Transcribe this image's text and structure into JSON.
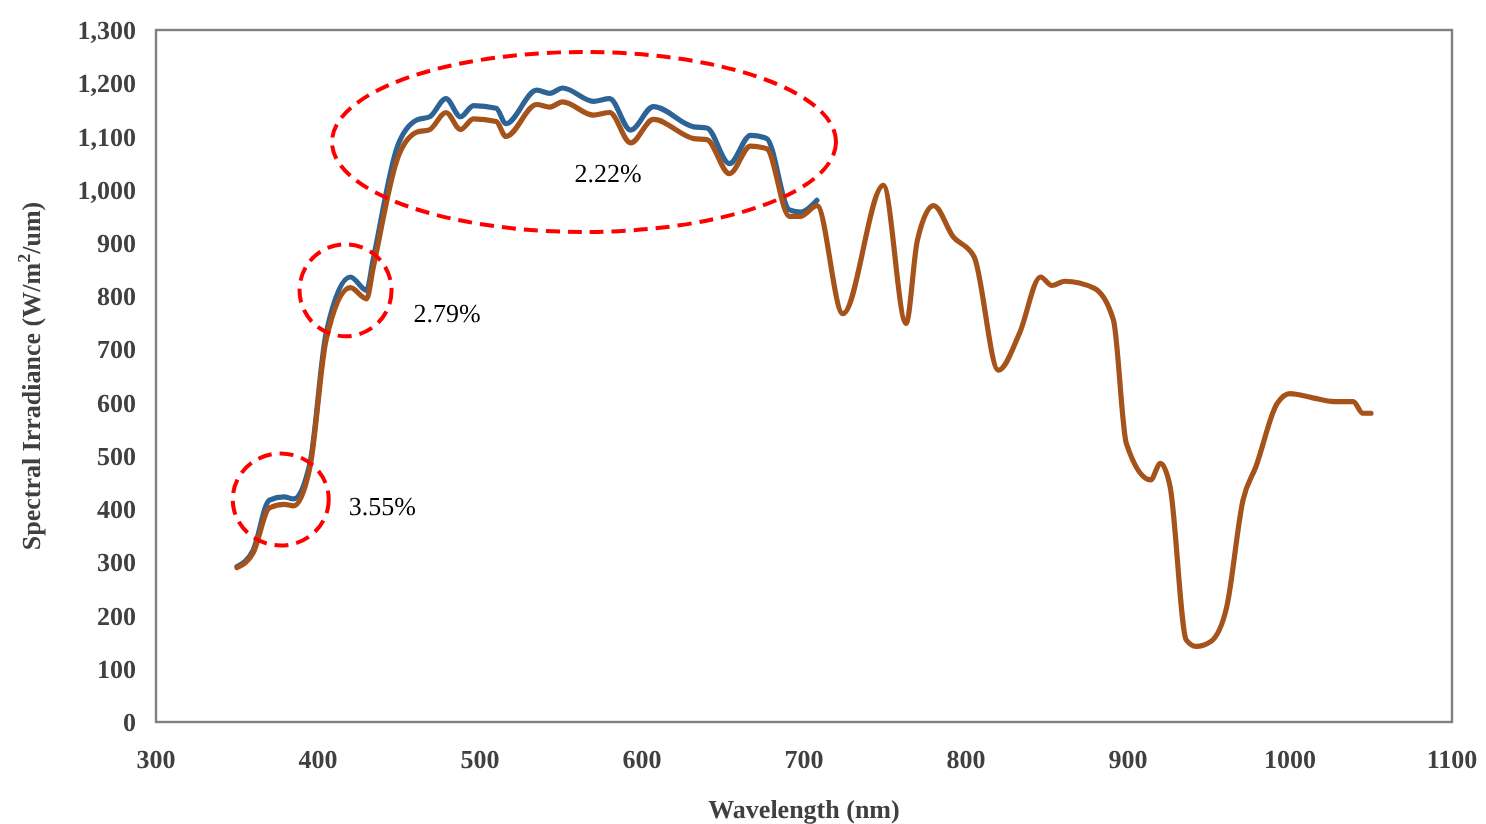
{
  "chart_data": {
    "type": "line",
    "xlabel": "Wavelength (nm)",
    "ylabel": "Spectral Irradiance  (W/m$^{2}$/um)",
    "xlim": [
      300,
      1100
    ],
    "xticks": [
      300,
      400,
      500,
      600,
      700,
      800,
      900,
      1000,
      1100
    ],
    "ylim": [
      0,
      1300
    ],
    "yticks": [
      0,
      100,
      200,
      300,
      400,
      500,
      600,
      700,
      800,
      900,
      {
        "value": 1000,
        "label": "1,000"
      },
      {
        "value": 1100,
        "label": "1,100"
      },
      {
        "value": 1200,
        "label": "1,200"
      },
      {
        "value": 1300,
        "label": "1,300"
      }
    ],
    "grid": false,
    "marker": "none",
    "line_style": "solid",
    "x": [
      350,
      360,
      370,
      379,
      385,
      395,
      405,
      420,
      430,
      434,
      449,
      461,
      469,
      479,
      488,
      496,
      510,
      516,
      535,
      543,
      551,
      570,
      580,
      593,
      607,
      632,
      640,
      654,
      667,
      677,
      691,
      698,
      708,
      724,
      749,
      763,
      770,
      780,
      792,
      805,
      820,
      833,
      846,
      853,
      861,
      879,
      891,
      899,
      914,
      920,
      926,
      936,
      942,
      951,
      961,
      971,
      979,
      992,
      1000,
      1014,
      1027,
      1039,
      1045,
      1050
    ],
    "series": [
      {
        "color": "#2e6396",
        "values": [
          292,
          323,
          417,
          423,
          419,
          486,
          730,
          836,
          811,
          868,
          1081,
          1131,
          1137,
          1171,
          1137,
          1158,
          1153,
          1124,
          1187,
          1181,
          1191,
          1166,
          1171,
          1112,
          1156,
          1118,
          1116,
          1049,
          1102,
          1096,
          962,
          958,
          980,
          null,
          null,
          null,
          null,
          null,
          null,
          null,
          null,
          null,
          null,
          null,
          null,
          null,
          null,
          null,
          null,
          null,
          null,
          null,
          null,
          null,
          null,
          null,
          null,
          null,
          null,
          null,
          null,
          null,
          null,
          null
        ]
      },
      {
        "color": "#a5521b",
        "values": [
          290,
          318,
          402,
          409,
          406,
          478,
          718,
          816,
          795,
          852,
          1058,
          1108,
          1113,
          1145,
          1113,
          1133,
          1128,
          1100,
          1160,
          1155,
          1165,
          1140,
          1145,
          1088,
          1132,
          1096,
          1094,
          1030,
          1082,
          1077,
          950,
          950,
          970,
          767,
          1008,
          749,
          905,
          970,
          912,
          874,
          661,
          730,
          836,
          820,
          828,
          815,
          755,
          523,
          455,
          486,
          442,
          154,
          142,
          151,
          217,
          417,
          480,
          598,
          617,
          609,
          602,
          602,
          580,
          580
        ]
      }
    ],
    "annotations": [
      {
        "text": "3.55%",
        "x": 377,
        "y": 418
      },
      {
        "text": "2.79%",
        "x": 417,
        "y": 811
      },
      "2.22%"
    ]
  }
}
